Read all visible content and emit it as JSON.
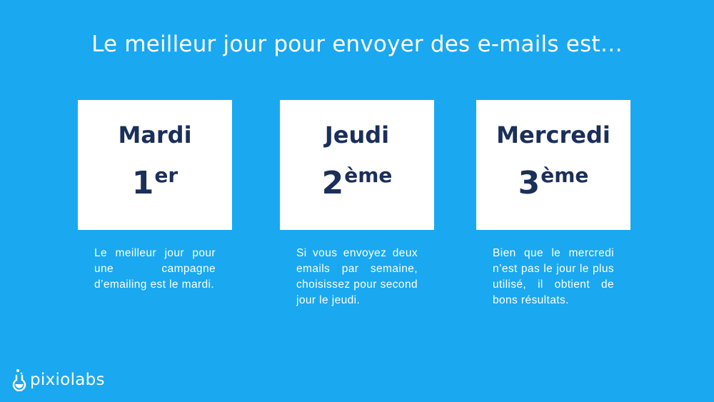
{
  "slide": {
    "title": "Le meilleur jour pour envoyer des e-mails est…",
    "cards": [
      {
        "day": "Mardi",
        "rank_number": "1",
        "rank_suffix": "er",
        "description": "Le meilleur jour pour une campagne d’emailing est le mardi."
      },
      {
        "day": "Jeudi",
        "rank_number": "2",
        "rank_suffix": "ème",
        "description": "Si vous envoyez deux emails par semaine, choisissez pour second jour le jeudi."
      },
      {
        "day": "Mercredi",
        "rank_number": "3",
        "rank_suffix": "ème",
        "description": "Bien que le mercredi n’est pas le jour le plus utilisé, il obtient de bons résultats."
      }
    ],
    "logo": {
      "text": "pixiolabs",
      "icon": "flask-icon"
    }
  },
  "colors": {
    "background": "#1aa8f0",
    "card": "#ffffff",
    "card_text": "#1b2f5b",
    "text": "#ffffff"
  }
}
